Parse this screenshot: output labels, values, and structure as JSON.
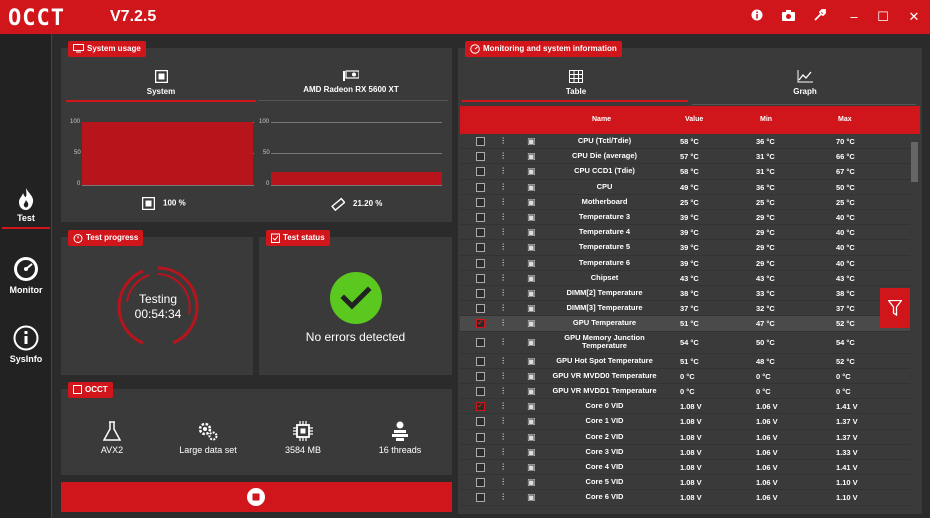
{
  "app": {
    "logo": "OCCT",
    "version": "V7.2.5"
  },
  "titlebar": {
    "info_icon": "info-icon",
    "camera_icon": "camera-icon",
    "settings_icon": "wrench-icon",
    "minimize": "–",
    "maximize": "☐",
    "close": "✕"
  },
  "nav": [
    {
      "label": "Test",
      "icon": "flame-icon"
    },
    {
      "label": "Monitor",
      "icon": "gauge-icon"
    },
    {
      "label": "SysInfo",
      "icon": "info-circle-icon"
    }
  ],
  "system_usage": {
    "title": "System usage",
    "tabs": [
      {
        "label": "System"
      },
      {
        "label": "AMD Radeon RX 5600 XT"
      }
    ],
    "axis": [
      "100",
      "50",
      "0"
    ],
    "cpu_usage": "100 %",
    "gpu_usage": "21.20 %",
    "cpu_fill": 1.0,
    "gpu_fill": 0.212
  },
  "test_progress": {
    "title": "Test progress",
    "status": "Testing",
    "time": "00:54:34"
  },
  "test_status": {
    "title": "Test status",
    "message": "No errors detected"
  },
  "occt_panel": {
    "title": "OCCT",
    "items": [
      {
        "label": "AVX2",
        "icon": "flask-icon"
      },
      {
        "label": "Large data set",
        "icon": "gears-icon"
      },
      {
        "label": "3584 MB",
        "icon": "chip-icon"
      },
      {
        "label": "16 threads",
        "icon": "threads-icon"
      }
    ]
  },
  "monitoring": {
    "title": "Monitoring and system information",
    "tabs": [
      {
        "label": "Table"
      },
      {
        "label": "Graph"
      }
    ],
    "columns": {
      "name": "Name",
      "value": "Value",
      "min": "Min",
      "max": "Max"
    },
    "rows": [
      {
        "name": "CPU (Tctl/Tdie)",
        "value": "58 °C",
        "min": "36 °C",
        "max": "70 °C",
        "checked": false
      },
      {
        "name": "CPU Die (average)",
        "value": "57 °C",
        "min": "31 °C",
        "max": "66 °C",
        "checked": false
      },
      {
        "name": "CPU CCD1 (Tdie)",
        "value": "58 °C",
        "min": "31 °C",
        "max": "67 °C",
        "checked": false
      },
      {
        "name": "CPU",
        "value": "49 °C",
        "min": "36 °C",
        "max": "50 °C",
        "checked": false
      },
      {
        "name": "Motherboard",
        "value": "25 °C",
        "min": "25 °C",
        "max": "25 °C",
        "checked": false
      },
      {
        "name": "Temperature 3",
        "value": "39 °C",
        "min": "29 °C",
        "max": "40 °C",
        "checked": false
      },
      {
        "name": "Temperature 4",
        "value": "39 °C",
        "min": "29 °C",
        "max": "40 °C",
        "checked": false
      },
      {
        "name": "Temperature 5",
        "value": "39 °C",
        "min": "29 °C",
        "max": "40 °C",
        "checked": false
      },
      {
        "name": "Temperature 6",
        "value": "39 °C",
        "min": "29 °C",
        "max": "40 °C",
        "checked": false
      },
      {
        "name": "Chipset",
        "value": "43 °C",
        "min": "43 °C",
        "max": "43 °C",
        "checked": false
      },
      {
        "name": "DIMM[2] Temperature",
        "value": "38 °C",
        "min": "33 °C",
        "max": "38 °C",
        "checked": false
      },
      {
        "name": "DIMM[3] Temperature",
        "value": "37 °C",
        "min": "32 °C",
        "max": "37 °C",
        "checked": false
      },
      {
        "name": "GPU Temperature",
        "value": "51 °C",
        "min": "47 °C",
        "max": "52 °C",
        "checked": true
      },
      {
        "name": "GPU Memory Junction Temperature",
        "value": "54 °C",
        "min": "50 °C",
        "max": "54 °C",
        "checked": false
      },
      {
        "name": "GPU Hot Spot Temperature",
        "value": "51 °C",
        "min": "48 °C",
        "max": "52 °C",
        "checked": false
      },
      {
        "name": "GPU VR MVDD0 Temperature",
        "value": "0 °C",
        "min": "0 °C",
        "max": "0 °C",
        "checked": false
      },
      {
        "name": "GPU VR MVDD1 Temperature",
        "value": "0 °C",
        "min": "0 °C",
        "max": "0 °C",
        "checked": false
      },
      {
        "name": "Core 0 VID",
        "value": "1.08 V",
        "min": "1.06 V",
        "max": "1.41 V",
        "checked": true
      },
      {
        "name": "Core 1 VID",
        "value": "1.08 V",
        "min": "1.06 V",
        "max": "1.37 V",
        "checked": false
      },
      {
        "name": "Core 2 VID",
        "value": "1.08 V",
        "min": "1.06 V",
        "max": "1.37 V",
        "checked": false
      },
      {
        "name": "Core 3 VID",
        "value": "1.08 V",
        "min": "1.06 V",
        "max": "1.33 V",
        "checked": false
      },
      {
        "name": "Core 4 VID",
        "value": "1.08 V",
        "min": "1.06 V",
        "max": "1.41 V",
        "checked": false
      },
      {
        "name": "Core 5 VID",
        "value": "1.08 V",
        "min": "1.06 V",
        "max": "1.10 V",
        "checked": false
      },
      {
        "name": "Core 6 VID",
        "value": "1.08 V",
        "min": "1.06 V",
        "max": "1.10 V",
        "checked": false
      }
    ]
  },
  "colors": {
    "accent": "#d0151b",
    "panel": "#3a3a3a",
    "background": "#2b2b2b",
    "success": "#5ac81e"
  }
}
